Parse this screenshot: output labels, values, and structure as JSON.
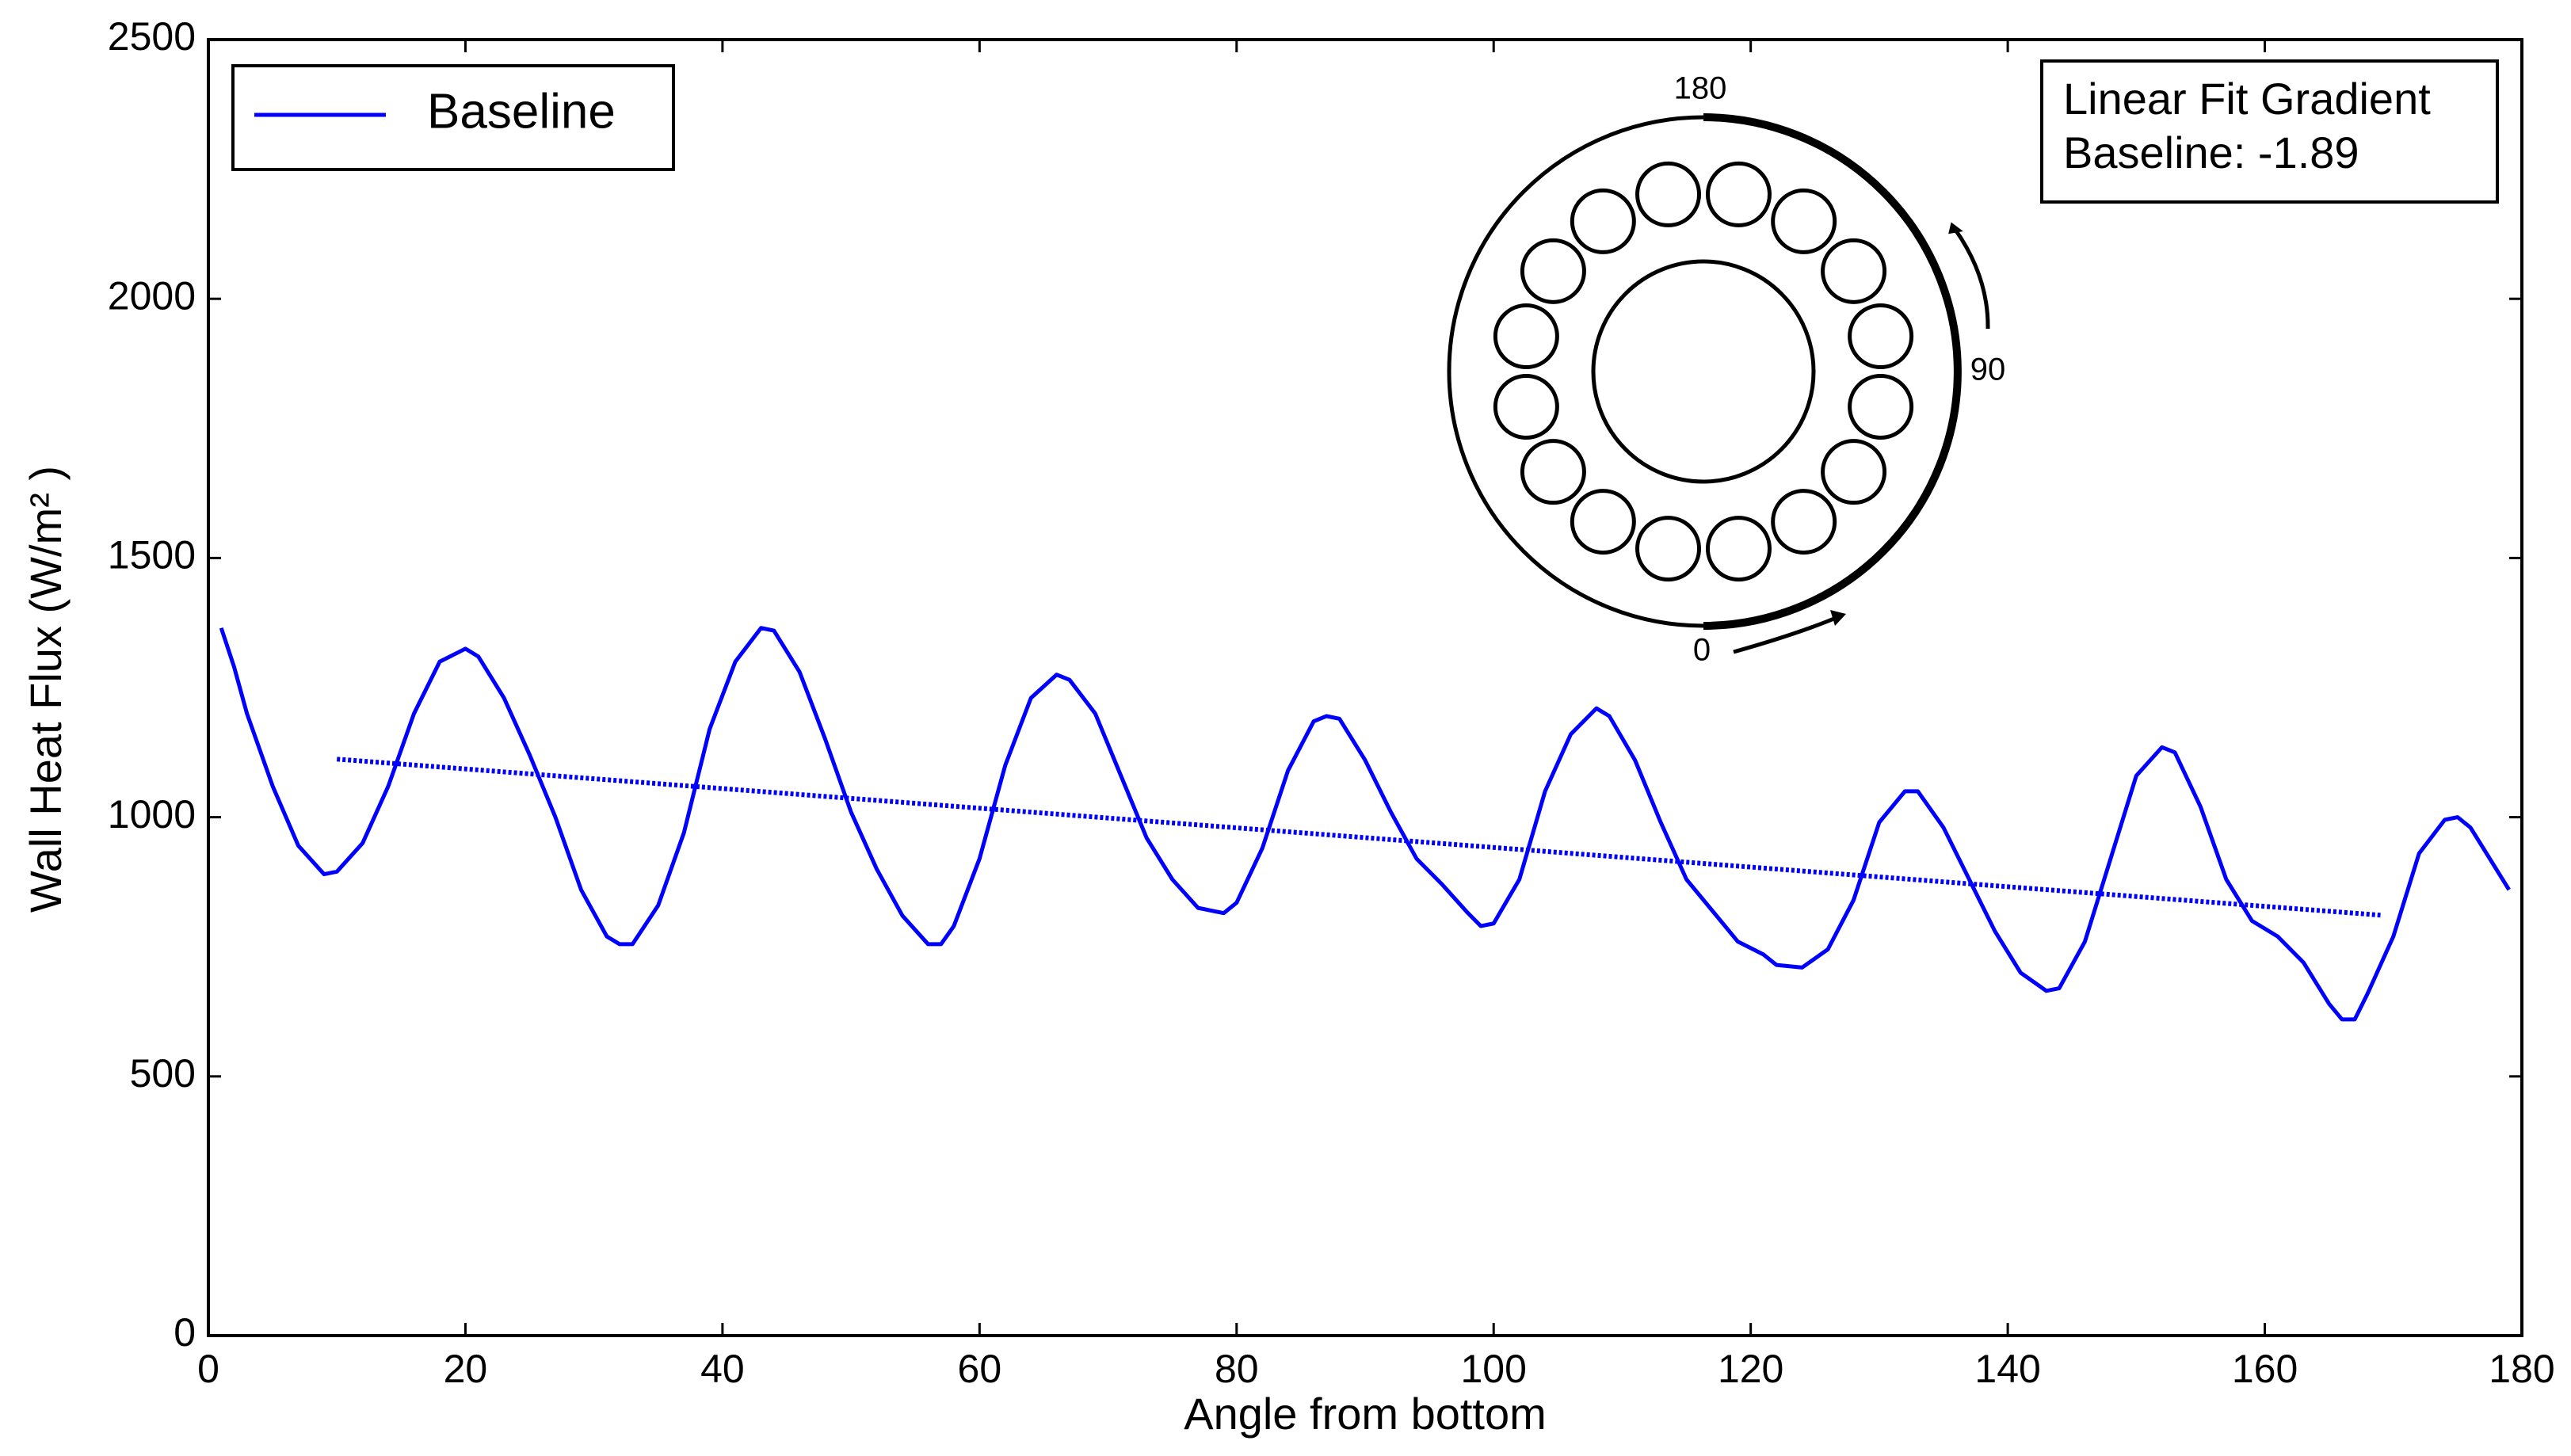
{
  "chart_data": {
    "type": "line",
    "xlabel": "Angle from bottom",
    "ylabel": "Wall Heat Flux (W/m² )",
    "xlim": [
      0,
      180
    ],
    "xticks": [
      0,
      20,
      40,
      60,
      80,
      100,
      120,
      140,
      160,
      180
    ],
    "ylim": [
      0,
      2500
    ],
    "yticks": [
      0,
      500,
      1000,
      1500,
      2000,
      2500
    ],
    "legend": "upper left",
    "series": [
      {
        "name": "Baseline",
        "color": "#0000ff",
        "x": [
          1,
          2,
          3,
          5,
          7,
          9,
          10,
          12,
          14,
          16,
          18,
          20,
          21,
          23,
          25,
          27,
          29,
          31,
          32,
          33,
          35,
          37,
          39,
          41,
          43,
          44,
          46,
          48,
          50,
          52,
          54,
          56,
          57,
          58,
          60,
          62,
          64,
          66,
          67,
          69,
          71,
          73,
          75,
          77,
          79,
          80,
          82,
          84,
          86,
          87,
          88,
          90,
          92,
          94,
          96,
          98,
          99,
          100,
          102,
          104,
          106,
          108,
          109,
          111,
          113,
          115,
          117,
          119,
          121,
          122,
          124,
          126,
          128,
          130,
          132,
          133,
          135,
          137,
          139,
          141,
          143,
          144,
          146,
          148,
          150,
          152,
          153,
          155,
          157,
          159,
          161,
          163,
          165,
          166,
          167,
          168,
          170,
          172,
          174,
          175,
          176,
          177,
          179
        ],
        "values": [
          1365,
          1290,
          1200,
          1060,
          945,
          890,
          895,
          950,
          1060,
          1200,
          1300,
          1325,
          1310,
          1230,
          1120,
          1000,
          860,
          770,
          755,
          755,
          830,
          970,
          1170,
          1300,
          1365,
          1360,
          1280,
          1150,
          1010,
          900,
          810,
          755,
          755,
          790,
          920,
          1100,
          1230,
          1275,
          1265,
          1200,
          1080,
          960,
          880,
          825,
          815,
          835,
          940,
          1090,
          1185,
          1195,
          1190,
          1110,
          1010,
          920,
          870,
          815,
          790,
          795,
          880,
          1050,
          1160,
          1210,
          1195,
          1110,
          990,
          880,
          820,
          760,
          735,
          715,
          710,
          745,
          840,
          990,
          1050,
          1050,
          980,
          880,
          780,
          700,
          665,
          670,
          760,
          920,
          1080,
          1135,
          1125,
          1020,
          880,
          800,
          770,
          720,
          640,
          610,
          610,
          660,
          770,
          930,
          995,
          1000,
          980,
          940,
          860
        ]
      }
    ],
    "fit_line": {
      "color": "#0000ff",
      "style": "dotted",
      "x": [
        10,
        169
      ],
      "values": [
        1112,
        811
      ]
    },
    "annotation": [
      "Linear Fit Gradient",
      "Baseline: -1.89"
    ],
    "inset_labels": [
      "180",
      "90",
      "0"
    ]
  }
}
